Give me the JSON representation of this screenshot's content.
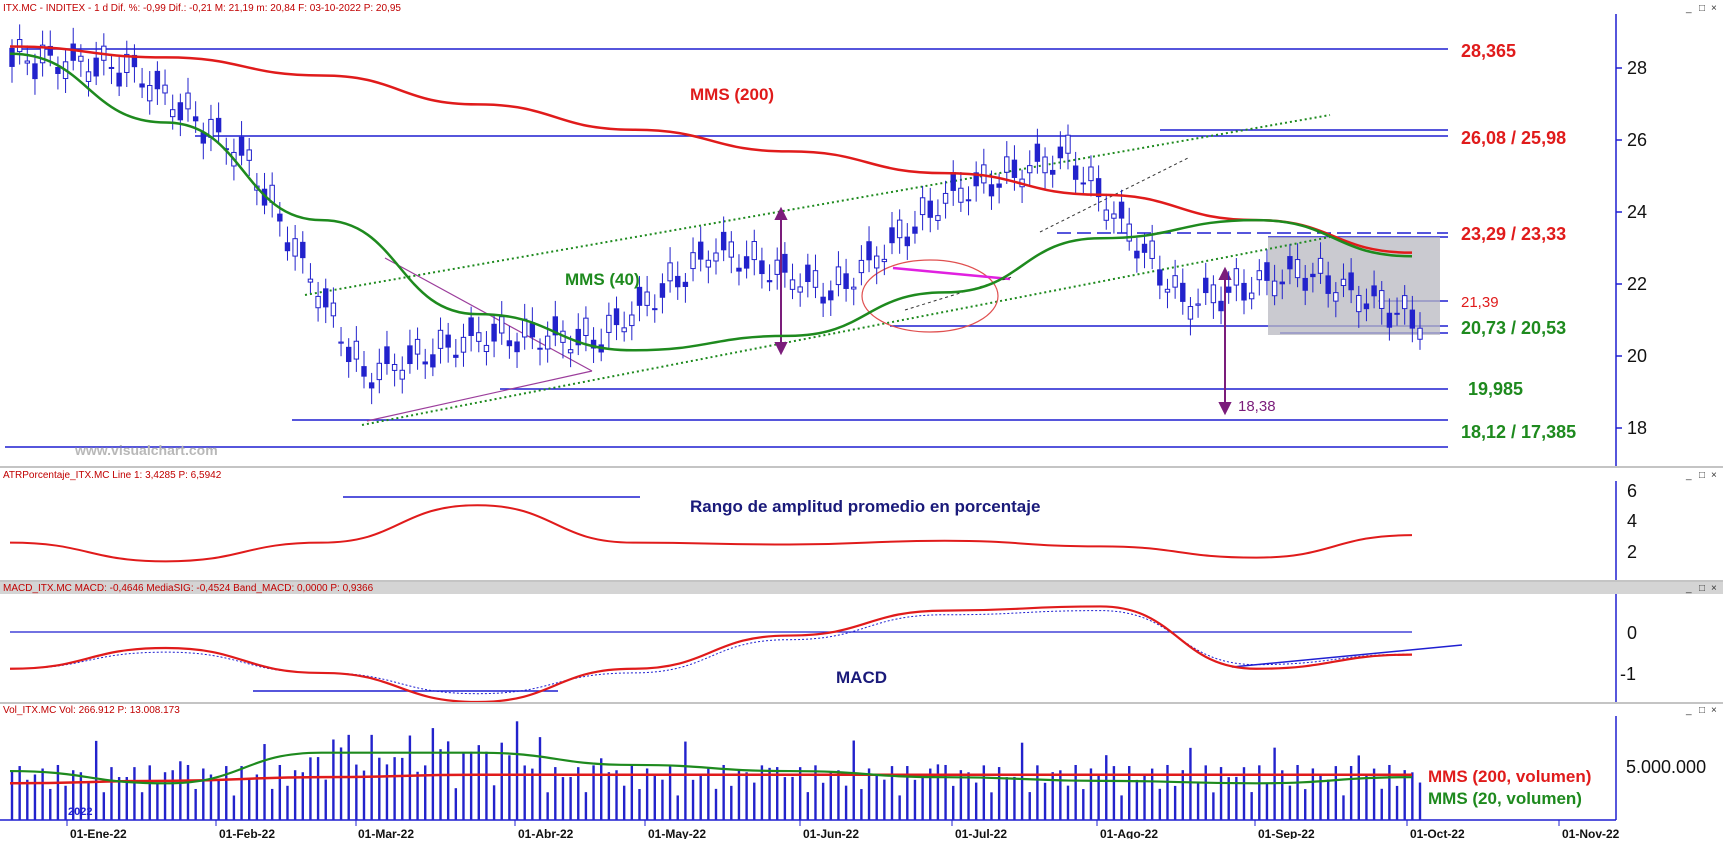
{
  "panels": {
    "price": {
      "header": "ITX.MC - INDITEX - 1 d  Dif. %: -0,99  Dif.: -0,21  M: 21,19  m: 20,84  F: 03-10-2022  P: 20,95",
      "watermark": "www.visualchart.com",
      "yticks": [
        "18",
        "20",
        "22",
        "24",
        "26",
        "28"
      ],
      "levels": [
        "28,365",
        "26,08 / 25,98",
        "23,29 / 23,33",
        "21,39",
        "20,73 / 20,53",
        "19,985",
        "18,12 / 17,385"
      ],
      "annotations": {
        "mms200": "MMS (200)",
        "mms40": "MMS (40)",
        "target": "18,38"
      }
    },
    "atr": {
      "header": "ATRPorcentaje_ITX.MC  Line 1: 3,4285  P: 6,5942",
      "title": "Rango de amplitud promedio en porcentaje",
      "yticks": [
        "2",
        "4",
        "6"
      ]
    },
    "macd": {
      "header": "MACD_ITX.MC  MACD: -0,4646  MediaSIG: -0,4524  Band_MACD: 0,0000  P: 0,9366",
      "title": "MACD",
      "yticks": [
        "-1",
        "0"
      ]
    },
    "volume": {
      "header": "Vol_ITX.MC  Vol: 266.912  P: 13.008.173",
      "ytick": "5.000.000",
      "legend_200": "MMS (200, volumen)",
      "legend_20": "MMS (20, volumen)",
      "year_label": "2022"
    }
  },
  "xaxis": [
    "01-Ene-22",
    "01-Feb-22",
    "01-Mar-22",
    "01-Abr-22",
    "01-May-22",
    "01-Jun-22",
    "01-Jul-22",
    "01-Ago-22",
    "01-Sep-22",
    "01-Oct-22",
    "01-Nov-22"
  ],
  "colors": {
    "axis": "#1f1fd1",
    "mms200": "#e01b1b",
    "mms40": "#1e8a1e",
    "candle": "#2222cc",
    "purple": "#7b1d7b",
    "magenta": "#e020e0",
    "level_red": "#e01b1b",
    "level_green": "#1e8a1e"
  },
  "chart_data": [
    {
      "type": "line",
      "title": "ITX.MC - INDITEX - 1 d",
      "y_range": [
        17,
        29.5
      ],
      "x": [
        "01-Ene-22",
        "01-Feb-22",
        "01-Mar-22",
        "01-Abr-22",
        "01-May-22",
        "01-Jun-22",
        "01-Jul-22",
        "01-Ago-22",
        "01-Sep-22",
        "01-Oct-22"
      ],
      "series": [
        {
          "name": "MMS (200)",
          "values": [
            28.6,
            28.3,
            27.8,
            27.0,
            26.3,
            25.7,
            25.1,
            24.5,
            23.8,
            22.9
          ]
        },
        {
          "name": "MMS (40)",
          "values": [
            28.4,
            26.5,
            23.8,
            21.2,
            20.2,
            20.6,
            21.8,
            23.3,
            23.8,
            22.8
          ]
        }
      ],
      "levels": [
        28.365,
        26.08,
        25.98,
        23.29,
        23.33,
        21.39,
        20.73,
        20.53,
        19.985,
        18.12,
        17.385
      ]
    },
    {
      "type": "line",
      "title": "Rango de amplitud promedio en porcentaje",
      "y_range": [
        1,
        6.3
      ],
      "series": [
        {
          "name": "ATRPorcentaje_ITX.MC",
          "values": [
            3.0,
            2.0,
            3.0,
            5.0,
            3.0,
            2.9,
            3.1,
            2.8,
            2.2,
            3.4
          ]
        }
      ]
    },
    {
      "type": "line",
      "title": "MACD",
      "y_range": [
        -1.6,
        1.0
      ],
      "series": [
        {
          "name": "MACD",
          "values": [
            -0.8,
            -0.3,
            -0.9,
            -1.6,
            -0.8,
            0.0,
            0.6,
            0.7,
            -0.8,
            -0.46
          ]
        },
        {
          "name": "MediaSIG",
          "values": [
            -0.8,
            -0.4,
            -0.9,
            -1.4,
            -0.9,
            -0.1,
            0.5,
            0.6,
            -0.7,
            -0.45
          ]
        }
      ]
    },
    {
      "type": "bar",
      "title": "Vol_ITX.MC",
      "y_range": [
        0,
        8500000
      ],
      "series": [
        {
          "name": "MMS (200, volumen)",
          "values": [
            3000000,
            3200000,
            3500000,
            3700000,
            3700000,
            3700000,
            3700000,
            3700000,
            3700000,
            3700000
          ]
        },
        {
          "name": "MMS (20, volumen)",
          "values": [
            4000000,
            3000000,
            5500000,
            5500000,
            4500000,
            4000000,
            3500000,
            3200000,
            3000000,
            3500000
          ]
        }
      ]
    }
  ]
}
